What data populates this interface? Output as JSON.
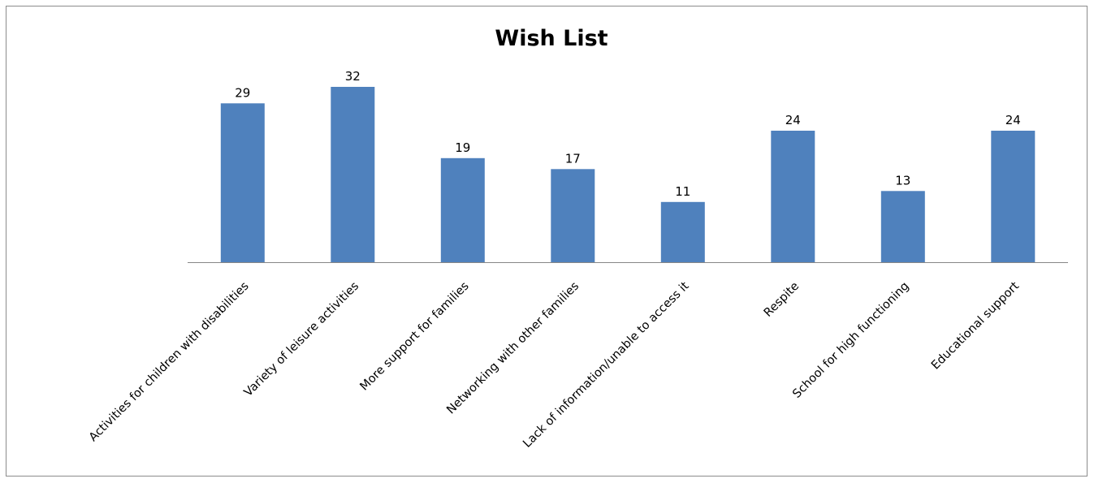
{
  "chart_data": {
    "type": "bar",
    "title": "Wish List",
    "categories": [
      "Activities for children with disabilities",
      "Variety of leisure activities",
      "More support for families",
      "Networking with other families",
      "Lack of information/unable to access it",
      "Respite",
      "School for high functioning",
      "Educational support"
    ],
    "values": [
      29,
      32,
      19,
      17,
      11,
      24,
      13,
      24
    ],
    "data_labels": [
      "29",
      "32",
      "19",
      "17",
      "11",
      "24",
      "13",
      "24"
    ],
    "xlabel": "",
    "ylabel": "",
    "ylim": [
      0,
      32
    ],
    "grid": false,
    "legend": "none",
    "bar_color": "#4F81BD",
    "axis_color": "#868686"
  }
}
